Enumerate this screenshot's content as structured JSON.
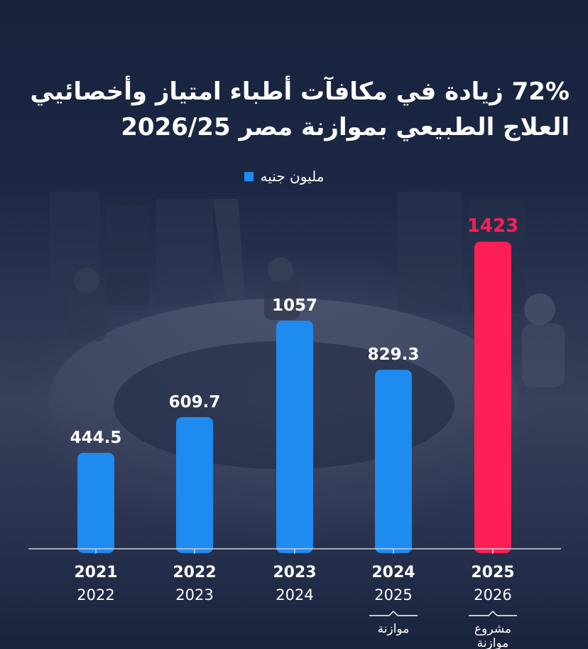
{
  "title_lines": [
    "72% زيادة في مكافآت أطباء امتياز وأخصائيي",
    "العلاج الطبيعي بموازنة مصر 2026/25"
  ],
  "legend": {
    "label": "مليون جنيه",
    "color": "#1e8bf0"
  },
  "colors": {
    "bar": "#1e8bf0",
    "highlight": "#ff1f57",
    "axis": "#c9ced8"
  },
  "chart_data": {
    "type": "bar",
    "categories": [
      {
        "top": "2021",
        "bottom": "2022",
        "note": ""
      },
      {
        "top": "2022",
        "bottom": "2023",
        "note": ""
      },
      {
        "top": "2023",
        "bottom": "2024",
        "note": ""
      },
      {
        "top": "2024",
        "bottom": "2025",
        "note": "موازنة"
      },
      {
        "top": "2025",
        "bottom": "2026",
        "note": "مشروع موازنة"
      }
    ],
    "values": [
      444.5,
      609.7,
      1057,
      829.3,
      1423
    ],
    "value_labels": [
      "444.5",
      "609.7",
      "1057",
      "829.3",
      "1423"
    ],
    "highlight_index": 4,
    "series": [
      {
        "name": "مليون جنيه",
        "values": [
          444.5,
          609.7,
          1057,
          829.3,
          1423
        ]
      }
    ],
    "ylim": [
      0,
      1423
    ],
    "grid": false,
    "legend_position": "top-center"
  }
}
